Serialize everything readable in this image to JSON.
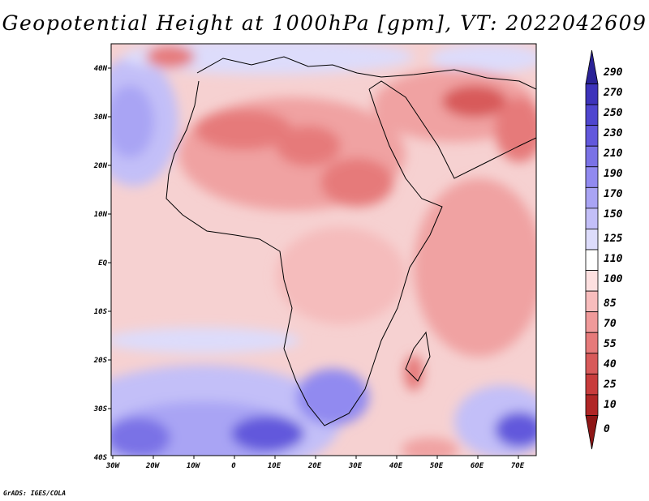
{
  "title": "Geopotential Height at 1000hPa [gpm], VT: 2022042609",
  "footer": "GrADS: IGES/COLA",
  "map": {
    "lon_labels": [
      "30W",
      "20W",
      "10W",
      "0",
      "10E",
      "20E",
      "30E",
      "40E",
      "50E",
      "60E",
      "70E"
    ],
    "lat_labels": [
      "40N",
      "30N",
      "20N",
      "10N",
      "EQ",
      "10S",
      "20S",
      "30S",
      "40S"
    ]
  },
  "colorbar": {
    "levels": [
      "290",
      "270",
      "250",
      "230",
      "210",
      "190",
      "170",
      "150",
      "125",
      "110",
      "100",
      "85",
      "70",
      "55",
      "40",
      "25",
      "10",
      "0"
    ],
    "colors": [
      "#2a2296",
      "#3d33bb",
      "#4f46cf",
      "#6258dc",
      "#7a72e6",
      "#918af0",
      "#a9a4f4",
      "#c3bff8",
      "#dddcfb",
      "#ffffff",
      "#fde0e0",
      "#f8bdbd",
      "#f09a9a",
      "#e67a7a",
      "#d85a5a",
      "#c83c3c",
      "#b02626",
      "#8e1616"
    ]
  }
}
